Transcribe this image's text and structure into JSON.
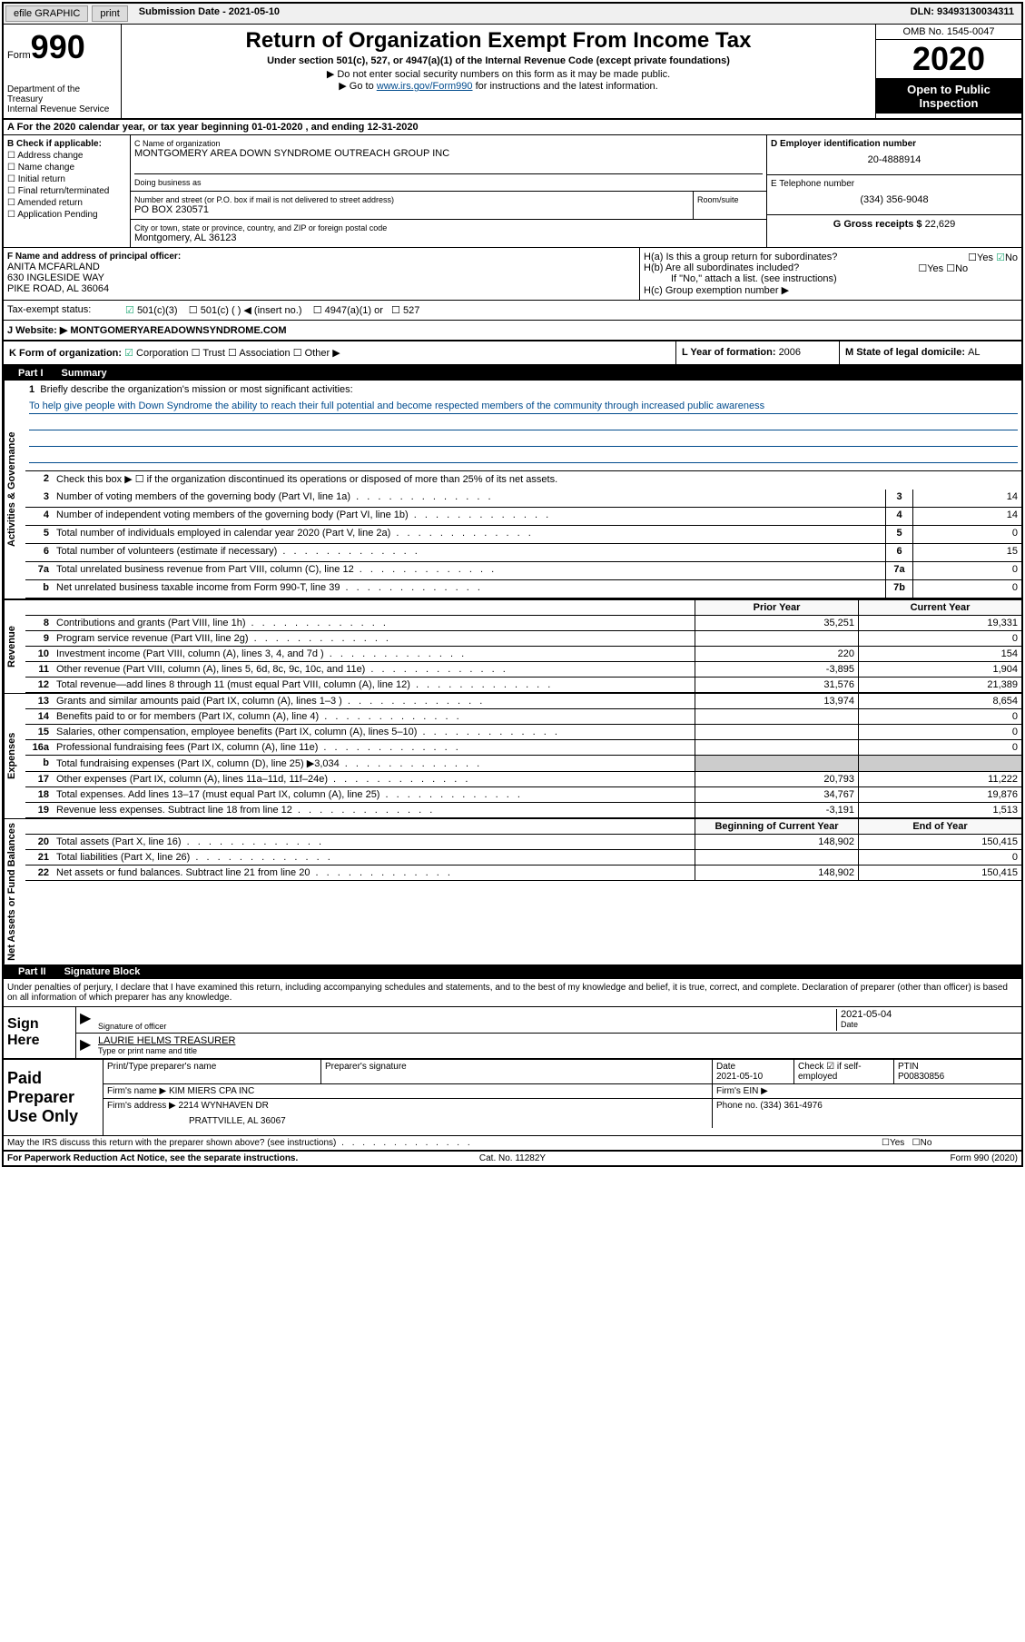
{
  "topbar": {
    "efile": "efile GRAPHIC",
    "print": "print",
    "submission_label": "Submission Date - 2021-05-10",
    "dln": "DLN: 93493130034311"
  },
  "header": {
    "form_prefix": "Form",
    "form_number": "990",
    "dept": "Department of the Treasury",
    "irs": "Internal Revenue Service",
    "title": "Return of Organization Exempt From Income Tax",
    "subtitle": "Under section 501(c), 527, or 4947(a)(1) of the Internal Revenue Code (except private foundations)",
    "instr1": "▶ Do not enter social security numbers on this form as it may be made public.",
    "instr2_prefix": "▶ Go to ",
    "instr2_link": "www.irs.gov/Form990",
    "instr2_suffix": " for instructions and the latest information.",
    "omb": "OMB No. 1545-0047",
    "year": "2020",
    "open": "Open to Public Inspection"
  },
  "sectionA": "A For the 2020 calendar year, or tax year beginning 01-01-2020    , and ending 12-31-2020",
  "colB": {
    "header": "B Check if applicable:",
    "items": [
      "Address change",
      "Name change",
      "Initial return",
      "Final return/terminated",
      "Amended return",
      "Application Pending"
    ]
  },
  "colC": {
    "name_label": "C Name of organization",
    "name": "MONTGOMERY AREA DOWN SYNDROME OUTREACH GROUP INC",
    "dba_label": "Doing business as",
    "dba": "",
    "street_label": "Number and street (or P.O. box if mail is not delivered to street address)",
    "street": "PO BOX 230571",
    "room_label": "Room/suite",
    "city_label": "City or town, state or province, country, and ZIP or foreign postal code",
    "city": "Montgomery, AL  36123"
  },
  "colDE": {
    "d_label": "D Employer identification number",
    "d_val": "20-4888914",
    "e_label": "E Telephone number",
    "e_val": "(334) 356-9048",
    "g_label": "G Gross receipts $ ",
    "g_val": "22,629"
  },
  "rowF": {
    "label": "F  Name and address of principal officer:",
    "name": "ANITA MCFARLAND",
    "addr1": "630 INGLESIDE WAY",
    "addr2": "PIKE ROAD, AL  36064"
  },
  "rowH": {
    "ha": "H(a)  Is this a group return for subordinates?",
    "hb": "H(b)  Are all subordinates included?",
    "hb_note": "If \"No,\" attach a list. (see instructions)",
    "hc": "H(c)  Group exemption number ▶"
  },
  "rowI": {
    "label": "Tax-exempt status:",
    "opt1": "501(c)(3)",
    "opt2": "501(c) (  ) ◀ (insert no.)",
    "opt3": "4947(a)(1) or",
    "opt4": "527"
  },
  "rowJ": {
    "label": "J Website: ▶",
    "val": "MONTGOMERYAREADOWNSYNDROME.COM"
  },
  "rowK": {
    "k_label": "K Form of organization:",
    "k_opts": [
      "Corporation",
      "Trust",
      "Association",
      "Other ▶"
    ],
    "l_label": "L Year of formation: ",
    "l_val": "2006",
    "m_label": "M State of legal domicile: ",
    "m_val": "AL"
  },
  "part1": {
    "label": "Part I",
    "title": "Summary",
    "tabs": [
      "Activities & Governance",
      "Revenue",
      "Expenses",
      "Net Assets or Fund Balances"
    ],
    "line1_label": "Briefly describe the organization's mission or most significant activities:",
    "line1_text": "To help give people with Down Syndrome the ability to reach their full potential and become respected members of the community through increased public awareness",
    "line2": "Check this box ▶ ☐  if the organization discontinued its operations or disposed of more than 25% of its net assets.",
    "rows_single": [
      {
        "n": "3",
        "label": "Number of voting members of the governing body (Part VI, line 1a)",
        "box": "3",
        "val": "14"
      },
      {
        "n": "4",
        "label": "Number of independent voting members of the governing body (Part VI, line 1b)",
        "box": "4",
        "val": "14"
      },
      {
        "n": "5",
        "label": "Total number of individuals employed in calendar year 2020 (Part V, line 2a)",
        "box": "5",
        "val": "0"
      },
      {
        "n": "6",
        "label": "Total number of volunteers (estimate if necessary)",
        "box": "6",
        "val": "15"
      },
      {
        "n": "7a",
        "label": "Total unrelated business revenue from Part VIII, column (C), line 12",
        "box": "7a",
        "val": "0"
      },
      {
        "n": "b",
        "label": "Net unrelated business taxable income from Form 990-T, line 39",
        "box": "7b",
        "val": "0"
      }
    ],
    "col_headers": {
      "prior": "Prior Year",
      "curr": "Current Year"
    },
    "revenue_rows": [
      {
        "n": "8",
        "label": "Contributions and grants (Part VIII, line 1h)",
        "prior": "35,251",
        "curr": "19,331"
      },
      {
        "n": "9",
        "label": "Program service revenue (Part VIII, line 2g)",
        "prior": "",
        "curr": "0"
      },
      {
        "n": "10",
        "label": "Investment income (Part VIII, column (A), lines 3, 4, and 7d )",
        "prior": "220",
        "curr": "154"
      },
      {
        "n": "11",
        "label": "Other revenue (Part VIII, column (A), lines 5, 6d, 8c, 9c, 10c, and 11e)",
        "prior": "-3,895",
        "curr": "1,904"
      },
      {
        "n": "12",
        "label": "Total revenue—add lines 8 through 11 (must equal Part VIII, column (A), line 12)",
        "prior": "31,576",
        "curr": "21,389"
      }
    ],
    "expense_rows": [
      {
        "n": "13",
        "label": "Grants and similar amounts paid (Part IX, column (A), lines 1–3 )",
        "prior": "13,974",
        "curr": "8,654"
      },
      {
        "n": "14",
        "label": "Benefits paid to or for members (Part IX, column (A), line 4)",
        "prior": "",
        "curr": "0"
      },
      {
        "n": "15",
        "label": "Salaries, other compensation, employee benefits (Part IX, column (A), lines 5–10)",
        "prior": "",
        "curr": "0"
      },
      {
        "n": "16a",
        "label": "Professional fundraising fees (Part IX, column (A), line 11e)",
        "prior": "",
        "curr": "0"
      },
      {
        "n": "b",
        "label": "Total fundraising expenses (Part IX, column (D), line 25) ▶3,034",
        "prior": "SHADED",
        "curr": "SHADED"
      },
      {
        "n": "17",
        "label": "Other expenses (Part IX, column (A), lines 11a–11d, 11f–24e)",
        "prior": "20,793",
        "curr": "11,222"
      },
      {
        "n": "18",
        "label": "Total expenses. Add lines 13–17 (must equal Part IX, column (A), line 25)",
        "prior": "34,767",
        "curr": "19,876"
      },
      {
        "n": "19",
        "label": "Revenue less expenses. Subtract line 18 from line 12",
        "prior": "-3,191",
        "curr": "1,513"
      }
    ],
    "net_headers": {
      "prior": "Beginning of Current Year",
      "curr": "End of Year"
    },
    "net_rows": [
      {
        "n": "20",
        "label": "Total assets (Part X, line 16)",
        "prior": "148,902",
        "curr": "150,415"
      },
      {
        "n": "21",
        "label": "Total liabilities (Part X, line 26)",
        "prior": "",
        "curr": "0"
      },
      {
        "n": "22",
        "label": "Net assets or fund balances. Subtract line 21 from line 20",
        "prior": "148,902",
        "curr": "150,415"
      }
    ]
  },
  "part2": {
    "label": "Part II",
    "title": "Signature Block",
    "penalty": "Under penalties of perjury, I declare that I have examined this return, including accompanying schedules and statements, and to the best of my knowledge and belief, it is true, correct, and complete. Declaration of preparer (other than officer) is based on all information of which preparer has any knowledge.",
    "sign_here": "Sign Here",
    "sig_officer_label": "Signature of officer",
    "sig_date_label": "Date",
    "sig_date": "2021-05-04",
    "officer_name": "LAURIE HELMS TREASURER",
    "officer_sublabel": "Type or print name and title",
    "paid_label": "Paid Preparer Use Only",
    "prep_name_label": "Print/Type preparer's name",
    "prep_sig_label": "Preparer's signature",
    "prep_date_label": "Date",
    "prep_date": "2021-05-10",
    "prep_check_label": "Check ☑ if self-employed",
    "ptin_label": "PTIN",
    "ptin": "P00830856",
    "firm_name_label": "Firm's name    ▶",
    "firm_name": "KIM MIERS CPA INC",
    "firm_ein_label": "Firm's EIN ▶",
    "firm_addr_label": "Firm's address ▶",
    "firm_addr": "2214 WYNHAVEN DR",
    "firm_city": "PRATTVILLE, AL  36067",
    "firm_phone_label": "Phone no. ",
    "firm_phone": "(334) 361-4976",
    "discuss": "May the IRS discuss this return with the preparer shown above? (see instructions)"
  },
  "footer": {
    "left": "For Paperwork Reduction Act Notice, see the separate instructions.",
    "center": "Cat. No. 11282Y",
    "right": "Form 990 (2020)"
  }
}
